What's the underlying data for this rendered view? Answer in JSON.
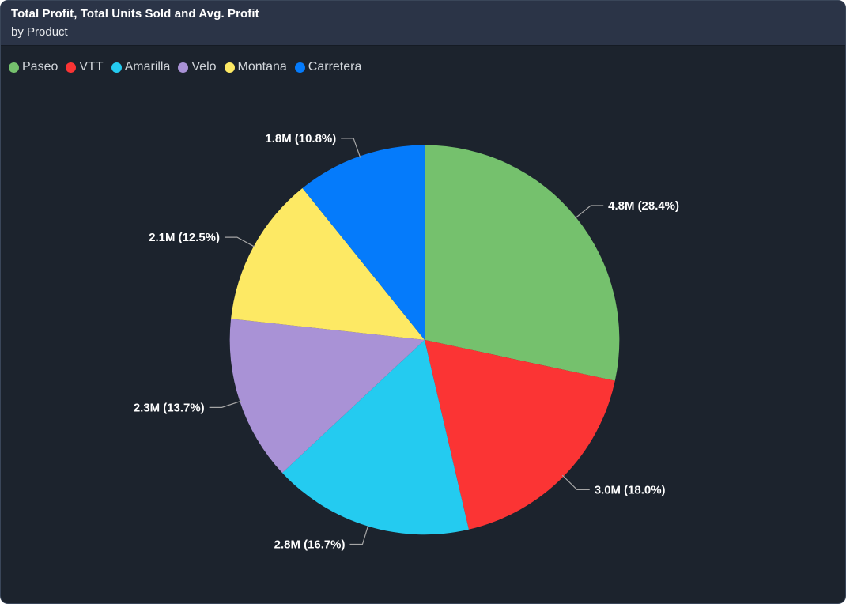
{
  "card": {
    "title": "Total Profit, Total Units Sold and Avg. Profit",
    "subtitle": "by Product"
  },
  "chart_data": {
    "type": "pie",
    "title": "Total Profit, Total Units Sold and Avg. Profit",
    "subtitle": "by Product",
    "legend_position": "top-left",
    "label_format": "value (percent%)",
    "start_angle_deg": 0,
    "direction": "clockwise",
    "series": [
      {
        "name": "Paseo",
        "value_label": "4.8M",
        "value_m": 4.8,
        "percent": 28.4,
        "color": "#75C16D"
      },
      {
        "name": "VTT",
        "value_label": "3.0M",
        "value_m": 3.0,
        "percent": 18.0,
        "color": "#FB3434"
      },
      {
        "name": "Amarilla",
        "value_label": "2.8M",
        "value_m": 2.8,
        "percent": 16.7,
        "color": "#24CBF0"
      },
      {
        "name": "Velo",
        "value_label": "2.3M",
        "value_m": 2.3,
        "percent": 13.7,
        "color": "#A992D6"
      },
      {
        "name": "Montana",
        "value_label": "2.1M",
        "value_m": 2.1,
        "percent": 12.5,
        "color": "#FDE964"
      },
      {
        "name": "Carretera",
        "value_label": "1.8M",
        "value_m": 1.8,
        "percent": 10.8,
        "color": "#057BFB"
      }
    ]
  },
  "colors": {
    "card_bg": "#1C232D",
    "header_bg": "#2B3447",
    "card_border": "#3A4659",
    "divider": "#151B24",
    "title_text": "#FFFFFF",
    "subtitle_text": "#E8EAED",
    "legend_text": "#D2D6DB",
    "data_label_text": "#FFFFFF",
    "leader_line": "#A6A6A6"
  }
}
